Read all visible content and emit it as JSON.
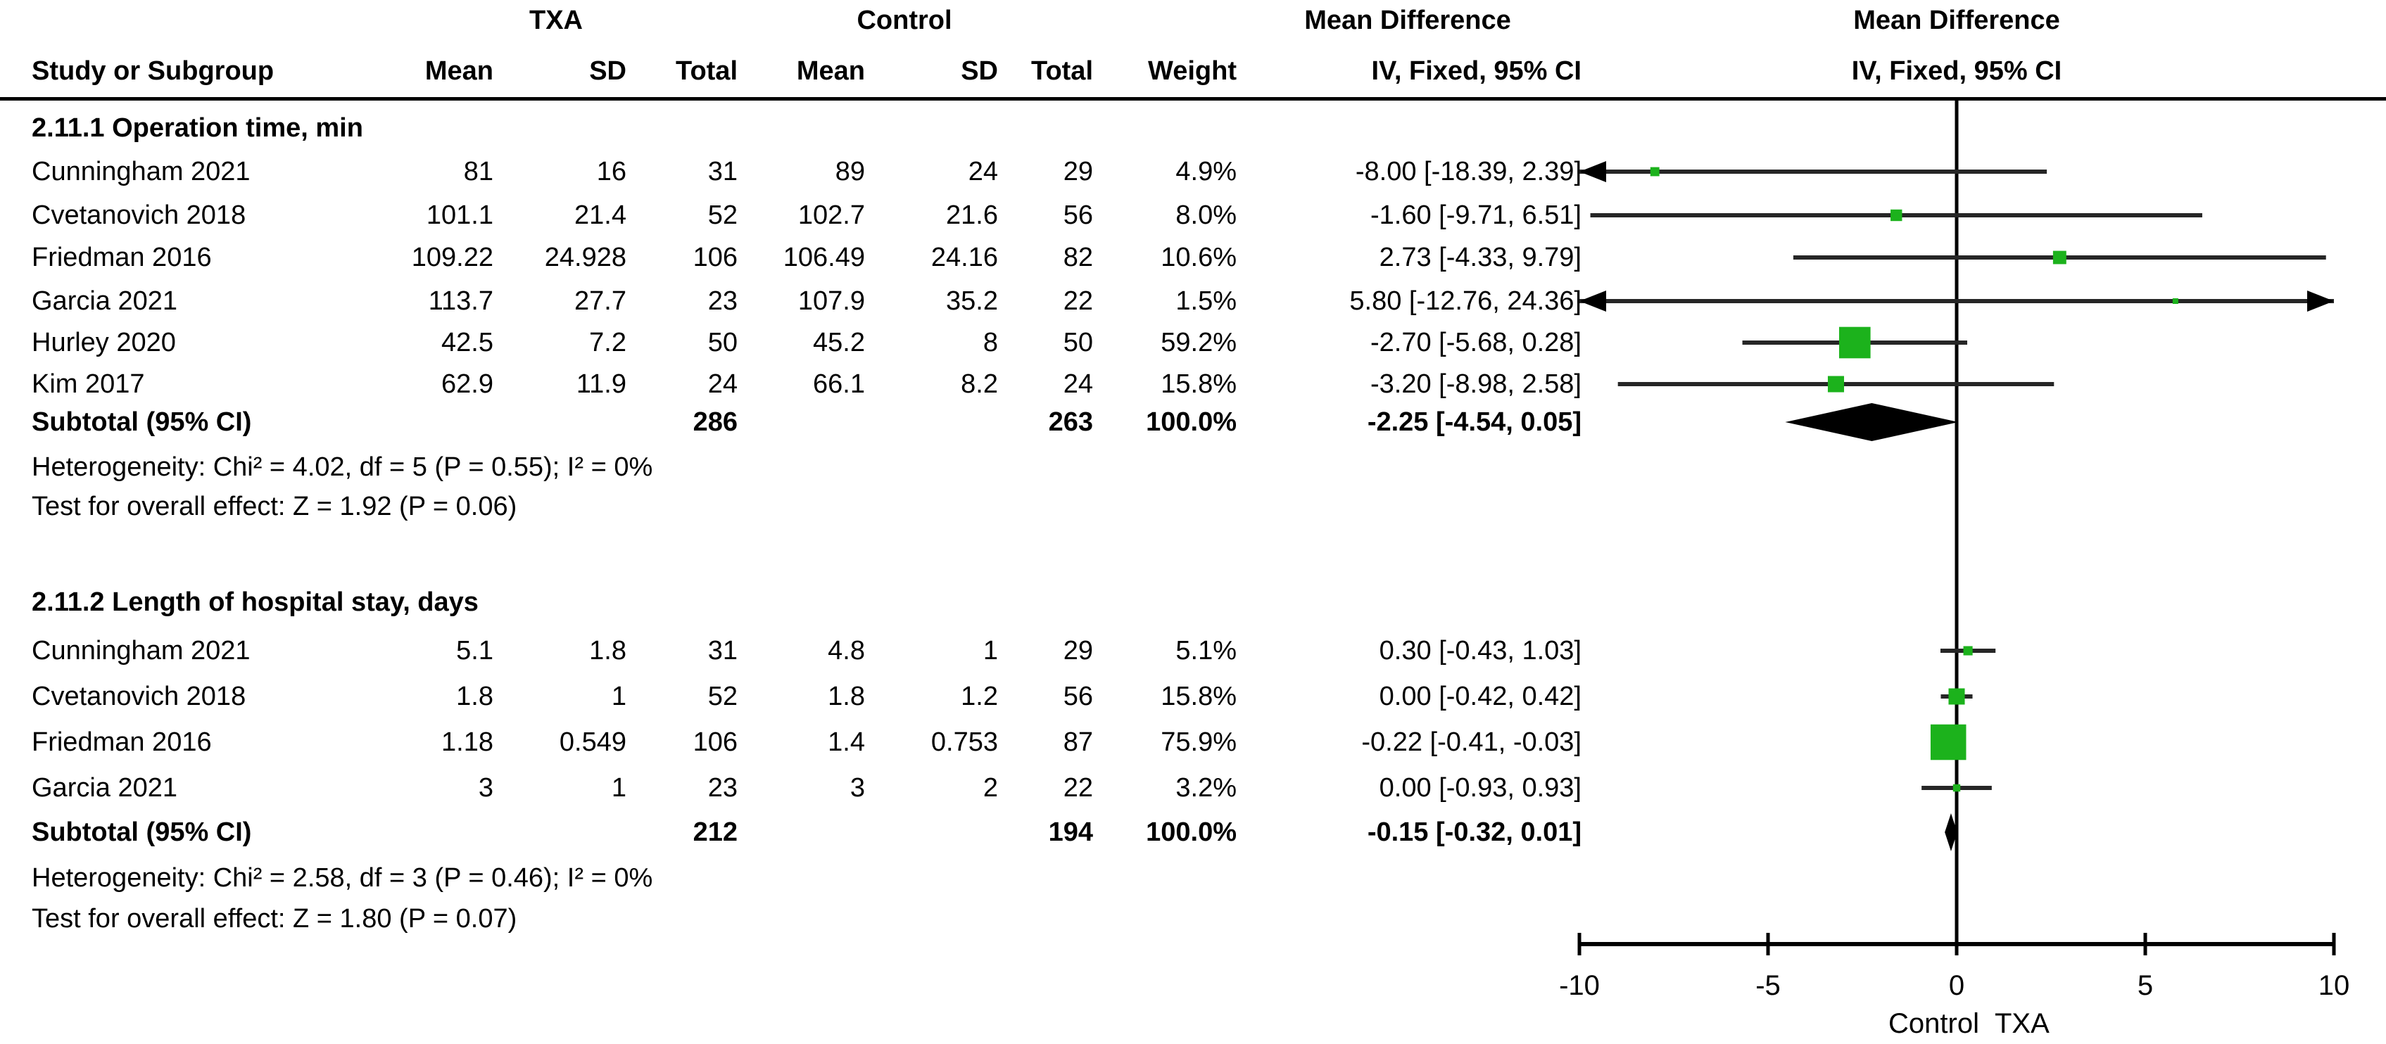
{
  "colors": {
    "marker_green": "#1cb21c",
    "line_black": "#262626",
    "diamond_black": "#000000"
  },
  "header": {
    "group_txa": "TXA",
    "group_control": "Control",
    "group_md_table": "Mean Difference",
    "group_md_plot": "Mean Difference",
    "col_study": "Study or Subgroup",
    "col_txa_mean": "Mean",
    "col_txa_sd": "SD",
    "col_txa_total": "Total",
    "col_ctrl_mean": "Mean",
    "col_ctrl_sd": "SD",
    "col_ctrl_total": "Total",
    "col_weight": "Weight",
    "col_iv_table": "IV, Fixed, 95% CI",
    "col_iv_plot": "IV, Fixed, 95% CI"
  },
  "chart_data": {
    "type": "forest",
    "effect_measure": "Mean Difference, IV, Fixed, 95% CI",
    "xlim": [
      -10,
      10
    ],
    "x_ticks": [
      -10,
      -5,
      0,
      5,
      10
    ],
    "x_tick_labels": [
      "-10",
      "-5",
      "0",
      "5",
      "10"
    ],
    "footer_left": "Control",
    "footer_right": "TXA",
    "sections": [
      {
        "title": "2.11.1 Operation time, min",
        "studies": [
          {
            "study": "Cunningham 2021",
            "txa_mean": "81",
            "txa_sd": "16",
            "txa_total": "31",
            "ctrl_mean": "89",
            "ctrl_sd": "24",
            "ctrl_total": "29",
            "weight": "4.9%",
            "ci_text": "-8.00 [-18.39, 2.39]",
            "md": -8.0,
            "lo": -18.39,
            "hi": 2.39,
            "weight_pct": 4.9
          },
          {
            "study": "Cvetanovich 2018",
            "txa_mean": "101.1",
            "txa_sd": "21.4",
            "txa_total": "52",
            "ctrl_mean": "102.7",
            "ctrl_sd": "21.6",
            "ctrl_total": "56",
            "weight": "8.0%",
            "ci_text": "-1.60 [-9.71, 6.51]",
            "md": -1.6,
            "lo": -9.71,
            "hi": 6.51,
            "weight_pct": 8.0
          },
          {
            "study": "Friedman 2016",
            "txa_mean": "109.22",
            "txa_sd": "24.928",
            "txa_total": "106",
            "ctrl_mean": "106.49",
            "ctrl_sd": "24.16",
            "ctrl_total": "82",
            "weight": "10.6%",
            "ci_text": "2.73 [-4.33, 9.79]",
            "md": 2.73,
            "lo": -4.33,
            "hi": 9.79,
            "weight_pct": 10.6
          },
          {
            "study": "Garcia 2021",
            "txa_mean": "113.7",
            "txa_sd": "27.7",
            "txa_total": "23",
            "ctrl_mean": "107.9",
            "ctrl_sd": "35.2",
            "ctrl_total": "22",
            "weight": "1.5%",
            "ci_text": "5.80 [-12.76, 24.36]",
            "md": 5.8,
            "lo": -12.76,
            "hi": 24.36,
            "weight_pct": 1.5
          },
          {
            "study": "Hurley 2020",
            "txa_mean": "42.5",
            "txa_sd": "7.2",
            "txa_total": "50",
            "ctrl_mean": "45.2",
            "ctrl_sd": "8",
            "ctrl_total": "50",
            "weight": "59.2%",
            "ci_text": "-2.70 [-5.68, 0.28]",
            "md": -2.7,
            "lo": -5.68,
            "hi": 0.28,
            "weight_pct": 59.2
          },
          {
            "study": "Kim 2017",
            "txa_mean": "62.9",
            "txa_sd": "11.9",
            "txa_total": "24",
            "ctrl_mean": "66.1",
            "ctrl_sd": "8.2",
            "ctrl_total": "24",
            "weight": "15.8%",
            "ci_text": "-3.20 [-8.98, 2.58]",
            "md": -3.2,
            "lo": -8.98,
            "hi": 2.58,
            "weight_pct": 15.8
          }
        ],
        "subtotal": {
          "label": "Subtotal (95% CI)",
          "txa_total": "286",
          "ctrl_total": "263",
          "weight": "100.0%",
          "ci_text": "-2.25 [-4.54, 0.05]",
          "md": -2.25,
          "lo": -4.54,
          "hi": 0.05
        },
        "heterogeneity": "Heterogeneity: Chi² = 4.02, df = 5 (P = 0.55); I² = 0%",
        "overall_effect": "Test for overall effect: Z = 1.92 (P = 0.06)"
      },
      {
        "title": "2.11.2 Length of hospital stay, days",
        "studies": [
          {
            "study": "Cunningham 2021",
            "txa_mean": "5.1",
            "txa_sd": "1.8",
            "txa_total": "31",
            "ctrl_mean": "4.8",
            "ctrl_sd": "1",
            "ctrl_total": "29",
            "weight": "5.1%",
            "ci_text": "0.30 [-0.43, 1.03]",
            "md": 0.3,
            "lo": -0.43,
            "hi": 1.03,
            "weight_pct": 5.1
          },
          {
            "study": "Cvetanovich 2018",
            "txa_mean": "1.8",
            "txa_sd": "1",
            "txa_total": "52",
            "ctrl_mean": "1.8",
            "ctrl_sd": "1.2",
            "ctrl_total": "56",
            "weight": "15.8%",
            "ci_text": "0.00 [-0.42, 0.42]",
            "md": 0.0,
            "lo": -0.42,
            "hi": 0.42,
            "weight_pct": 15.8
          },
          {
            "study": "Friedman 2016",
            "txa_mean": "1.18",
            "txa_sd": "0.549",
            "txa_total": "106",
            "ctrl_mean": "1.4",
            "ctrl_sd": "0.753",
            "ctrl_total": "87",
            "weight": "75.9%",
            "ci_text": "-0.22 [-0.41, -0.03]",
            "md": -0.22,
            "lo": -0.41,
            "hi": -0.03,
            "weight_pct": 75.9
          },
          {
            "study": "Garcia 2021",
            "txa_mean": "3",
            "txa_sd": "1",
            "txa_total": "23",
            "ctrl_mean": "3",
            "ctrl_sd": "2",
            "ctrl_total": "22",
            "weight": "3.2%",
            "ci_text": "0.00 [-0.93, 0.93]",
            "md": 0.0,
            "lo": -0.93,
            "hi": 0.93,
            "weight_pct": 3.2
          }
        ],
        "subtotal": {
          "label": "Subtotal (95% CI)",
          "txa_total": "212",
          "ctrl_total": "194",
          "weight": "100.0%",
          "ci_text": "-0.15 [-0.32, 0.01]",
          "md": -0.15,
          "lo": -0.32,
          "hi": 0.01
        },
        "heterogeneity": "Heterogeneity: Chi² = 2.58, df = 3 (P = 0.46); I² = 0%",
        "overall_effect": "Test for overall effect: Z = 1.80 (P = 0.07)"
      }
    ]
  }
}
